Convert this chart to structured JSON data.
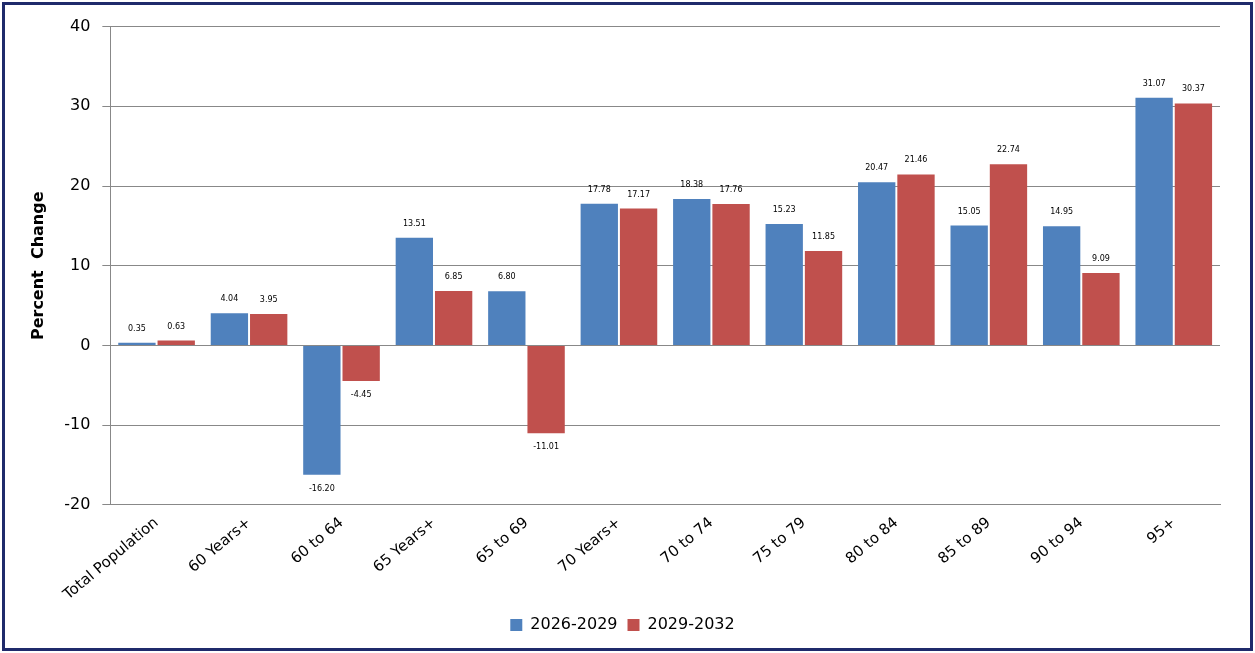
{
  "chart_data": {
    "type": "bar",
    "ylabel": "Percent  Change",
    "categories": [
      "Total Population",
      "60 Years+",
      "60 to 64",
      "65 Years+",
      "65 to 69",
      "70 Years+",
      "70 to 74",
      "75 to 79",
      "80 to 84",
      "85 to 89",
      "90 to 94",
      "95+"
    ],
    "series": [
      {
        "name": "2026-2029",
        "color": "#4f81bd",
        "values": [
          0.35,
          4.04,
          -16.2,
          13.51,
          6.8,
          17.78,
          18.38,
          15.23,
          20.47,
          15.05,
          14.95,
          31.07
        ],
        "value_labels": [
          "0.35",
          "4.04",
          "-16.20",
          "13.51",
          "6.80",
          "17.78",
          "18.38",
          "15.23",
          "20.47",
          "15.05",
          "14.95",
          "31.07"
        ]
      },
      {
        "name": "2029-2032",
        "color": "#c0504d",
        "values": [
          0.63,
          3.95,
          -4.45,
          6.85,
          -11.01,
          17.17,
          17.76,
          11.85,
          21.46,
          22.74,
          9.09,
          30.37
        ],
        "value_labels": [
          "0.63",
          "3.95",
          "-4.45",
          "6.85",
          "-11.01",
          "17.17",
          "17.76",
          "11.85",
          "21.46",
          "22.74",
          "9.09",
          "30.37"
        ]
      }
    ],
    "ylim": [
      -20,
      40
    ],
    "yticks": [
      -20,
      -10,
      0,
      10,
      20,
      30,
      40
    ],
    "grid": "y",
    "legend": "bottom"
  }
}
